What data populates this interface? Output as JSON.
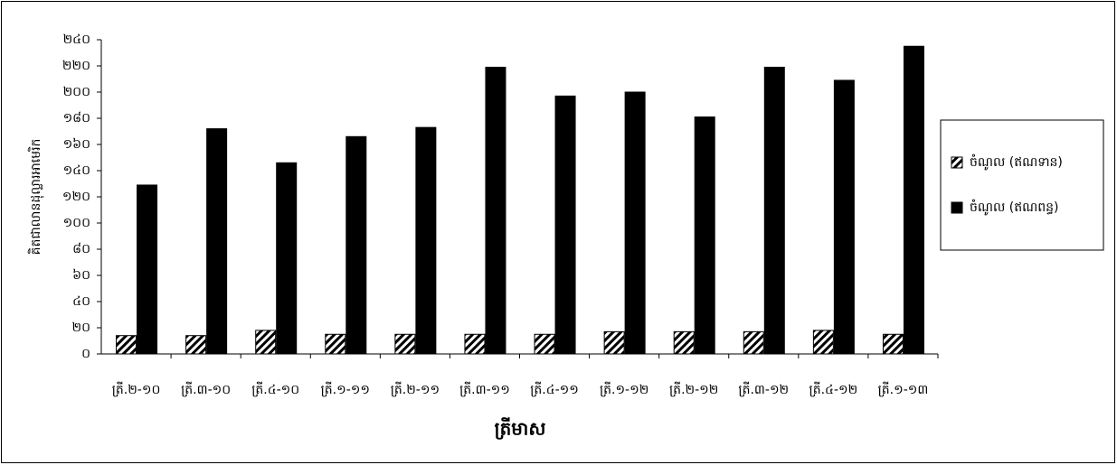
{
  "chart_data": {
    "type": "bar",
    "x_label": "ត្រីមាស",
    "y_label": "គិតជាលានដុល្លារអាមេរិក",
    "categories": [
      "ត្រី.២-១០",
      "ត្រី.៣-១០",
      "ត្រី.៤-១០",
      "ត្រី.១-១១",
      "ត្រី.២-១១",
      "ត្រី.៣-១១",
      "ត្រី.៤-១១",
      "ត្រី.១-១២",
      "ត្រី.២-១២",
      "ត្រី.៣-១២",
      "ត្រី.៤-១២",
      "ត្រី.១-១៣"
    ],
    "series": [
      {
        "name": "ចំណូល (ឥណទាន)",
        "color": "#000000",
        "fill": "hatch",
        "values": [
          14,
          14,
          18,
          15,
          15,
          15,
          15,
          17,
          17,
          17,
          18,
          15
        ]
      },
      {
        "name": "ចំណូល (ឥណពន្ធ)",
        "color": "#000000",
        "fill": "solid",
        "values": [
          129,
          172,
          146,
          166,
          173,
          219,
          197,
          200,
          181,
          219,
          209,
          235
        ]
      }
    ],
    "ylim": [
      0,
      240
    ],
    "yticks": [
      {
        "value": 0,
        "label": "០"
      },
      {
        "value": 20,
        "label": "២០"
      },
      {
        "value": 40,
        "label": "៤០"
      },
      {
        "value": 60,
        "label": "៦០"
      },
      {
        "value": 80,
        "label": "៨០"
      },
      {
        "value": 100,
        "label": "១០០"
      },
      {
        "value": 120,
        "label": "១២០"
      },
      {
        "value": 140,
        "label": "១៤០"
      },
      {
        "value": 160,
        "label": "១៦០"
      },
      {
        "value": 180,
        "label": "១៨០"
      },
      {
        "value": 200,
        "label": "២០០"
      },
      {
        "value": 220,
        "label": "២២០"
      },
      {
        "value": 240,
        "label": "២៤០"
      }
    ],
    "grid": false,
    "legend": "right"
  }
}
